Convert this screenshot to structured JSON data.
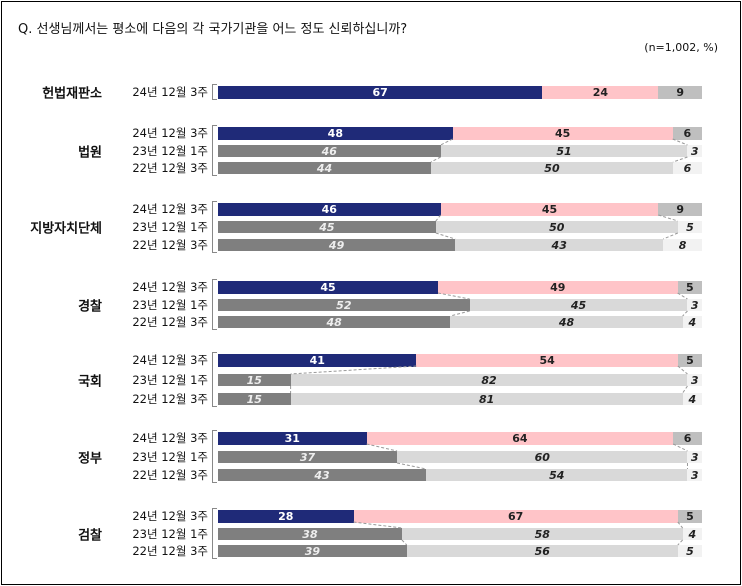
{
  "title": "Q. 선생님께서는 평소에 다음의 각 국가기관을 어느 정도 신뢰하십니까?",
  "note": "(n=1,002, %)",
  "chart_data": {
    "type": "bar",
    "orientation": "horizontal",
    "stacked": true,
    "xlim": [
      0,
      100
    ],
    "colors": {
      "current": [
        "#1f2a78",
        "#ffc4c8",
        "#bfbfbf"
      ],
      "previous": [
        "#7f7f7f",
        "#d9d9d9",
        "#f2f2f2"
      ]
    },
    "groups": [
      {
        "name": "헌법재판소",
        "rows": [
          {
            "period": "24년 12월 3주",
            "values": [
              67,
              24,
              9
            ]
          }
        ]
      },
      {
        "name": "법원",
        "rows": [
          {
            "period": "24년 12월 3주",
            "values": [
              48,
              45,
              6
            ]
          },
          {
            "period": "23년 12월 1주",
            "values": [
              46,
              51,
              3
            ]
          },
          {
            "period": "22년 12월 3주",
            "values": [
              44,
              50,
              6
            ]
          }
        ]
      },
      {
        "name": "지방자치단체",
        "rows": [
          {
            "period": "24년 12월 3주",
            "values": [
              46,
              45,
              9
            ]
          },
          {
            "period": "23년 12월 1주",
            "values": [
              45,
              50,
              5
            ]
          },
          {
            "period": "22년 12월 3주",
            "values": [
              49,
              43,
              8
            ]
          }
        ]
      },
      {
        "name": "경찰",
        "rows": [
          {
            "period": "24년 12월 3주",
            "values": [
              45,
              49,
              5
            ]
          },
          {
            "period": "23년 12월 1주",
            "values": [
              52,
              45,
              3
            ]
          },
          {
            "period": "22년 12월 3주",
            "values": [
              48,
              48,
              4
            ]
          }
        ]
      },
      {
        "name": "국회",
        "rows": [
          {
            "period": "24년 12월 3주",
            "values": [
              41,
              54,
              5
            ]
          },
          {
            "period": "23년 12월 1주",
            "values": [
              15,
              82,
              3
            ]
          },
          {
            "period": "22년 12월 3주",
            "values": [
              15,
              81,
              4
            ]
          }
        ]
      },
      {
        "name": "정부",
        "rows": [
          {
            "period": "24년 12월 3주",
            "values": [
              31,
              64,
              6
            ]
          },
          {
            "period": "23년 12월 1주",
            "values": [
              37,
              60,
              3
            ]
          },
          {
            "period": "22년 12월 3주",
            "values": [
              43,
              54,
              3
            ]
          }
        ]
      },
      {
        "name": "검찰",
        "rows": [
          {
            "period": "24년 12월 3주",
            "values": [
              28,
              67,
              5
            ]
          },
          {
            "period": "23년 12월 1주",
            "values": [
              38,
              58,
              4
            ]
          },
          {
            "period": "22년 12월 3주",
            "values": [
              39,
              56,
              5
            ]
          }
        ]
      }
    ]
  }
}
